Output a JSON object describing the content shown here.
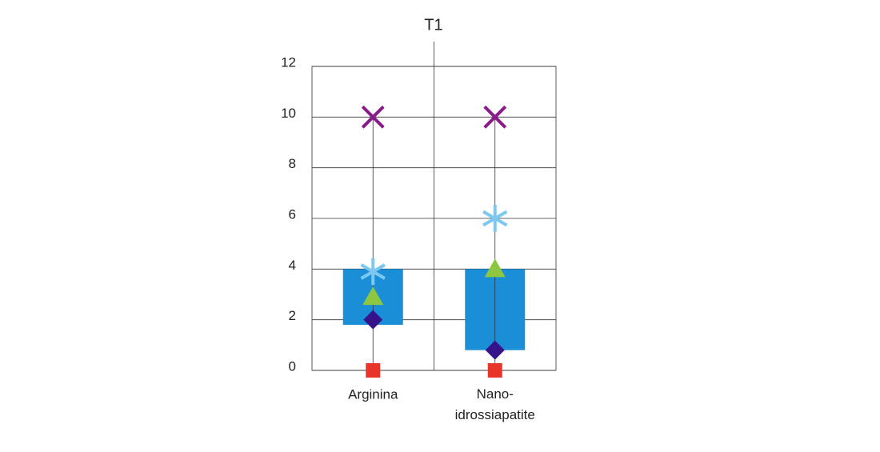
{
  "chart_data": {
    "type": "box",
    "title": "T1",
    "categories": [
      "Arginina",
      "Nano-idrossiapatite"
    ],
    "min": [
      0,
      0
    ],
    "q1": [
      1.8,
      0.8
    ],
    "q3": [
      4,
      4
    ],
    "max": [
      10,
      10
    ],
    "box_color": "#1a8fd8",
    "markers": [
      {
        "shape": "square",
        "color": "#e8352a",
        "values": [
          0,
          0
        ]
      },
      {
        "shape": "diamond",
        "color": "#36138a",
        "values": [
          2,
          0.8
        ]
      },
      {
        "shape": "triangle",
        "color": "#8dc63f",
        "values": [
          2.9,
          4
        ]
      },
      {
        "shape": "asterisk",
        "color": "#7dc8f0",
        "values": [
          3.9,
          6
        ]
      },
      {
        "shape": "cross",
        "color": "#8b1a8b",
        "values": [
          10,
          10
        ]
      }
    ],
    "ylim": [
      0,
      12
    ],
    "yticks": [
      0,
      2,
      4,
      6,
      8,
      10,
      12
    ],
    "grid": true
  }
}
